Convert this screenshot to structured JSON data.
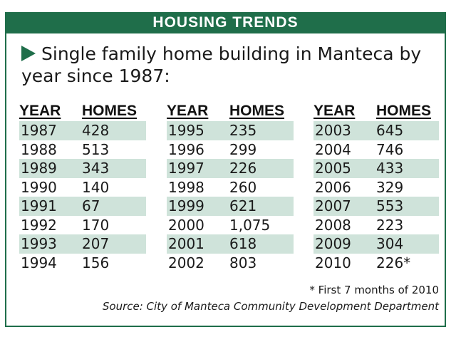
{
  "header": {
    "title": "HOUSING TRENDS"
  },
  "subtitle": "Single family home building in Manteca by year since 1987:",
  "colors": {
    "accent": "#1f6e4a",
    "row_shade": "#cfe3da"
  },
  "chart_data": {
    "type": "table",
    "title": "HOUSING TRENDS",
    "subtitle": "Single family home building in Manteca by year since 1987:",
    "columns": [
      "YEAR",
      "HOMES"
    ],
    "groups": [
      {
        "rows": [
          {
            "year": "1987",
            "homes": "428"
          },
          {
            "year": "1988",
            "homes": "513"
          },
          {
            "year": "1989",
            "homes": "343"
          },
          {
            "year": "1990",
            "homes": "140"
          },
          {
            "year": "1991",
            "homes": "67"
          },
          {
            "year": "1992",
            "homes": "170"
          },
          {
            "year": "1993",
            "homes": "207"
          },
          {
            "year": "1994",
            "homes": "156"
          }
        ]
      },
      {
        "rows": [
          {
            "year": "1995",
            "homes": "235"
          },
          {
            "year": "1996",
            "homes": "299"
          },
          {
            "year": "1997",
            "homes": "226"
          },
          {
            "year": "1998",
            "homes": "260"
          },
          {
            "year": "1999",
            "homes": "621"
          },
          {
            "year": "2000",
            "homes": "1,075"
          },
          {
            "year": "2001",
            "homes": "618"
          },
          {
            "year": "2002",
            "homes": "803"
          }
        ]
      },
      {
        "rows": [
          {
            "year": "2003",
            "homes": "645"
          },
          {
            "year": "2004",
            "homes": "746"
          },
          {
            "year": "2005",
            "homes": "433"
          },
          {
            "year": "2006",
            "homes": "329"
          },
          {
            "year": "2007",
            "homes": "553"
          },
          {
            "year": "2008",
            "homes": "223"
          },
          {
            "year": "2009",
            "homes": "304"
          },
          {
            "year": "2010",
            "homes": "226*"
          }
        ]
      }
    ],
    "footnote": "* First 7 months of 2010",
    "source": "Source: City of Manteca Community Development Department"
  }
}
